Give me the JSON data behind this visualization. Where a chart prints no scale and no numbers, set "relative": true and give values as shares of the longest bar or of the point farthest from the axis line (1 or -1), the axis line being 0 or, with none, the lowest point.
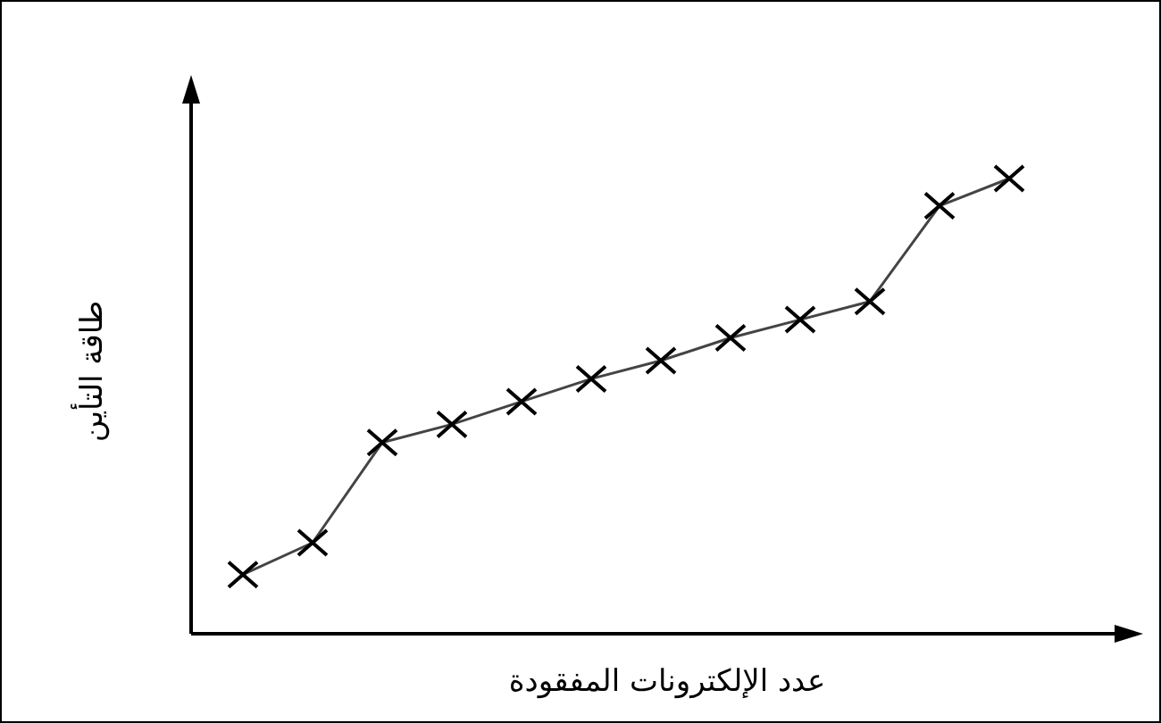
{
  "chart_data": {
    "type": "line",
    "relative": true,
    "xlabel": "عدد الإلكترونات المفقودة",
    "ylabel": "طاقة التأين",
    "categories": [
      null,
      null,
      null,
      null,
      null,
      null,
      null,
      null,
      null,
      null,
      null,
      null
    ],
    "series": [
      {
        "color": "#444444",
        "values": [
          0.13,
          0.2,
          0.42,
          0.46,
          0.51,
          0.56,
          0.6,
          0.65,
          0.69,
          0.73,
          0.94,
          1
        ]
      }
    ],
    "marker": "cross",
    "grid": false
  }
}
